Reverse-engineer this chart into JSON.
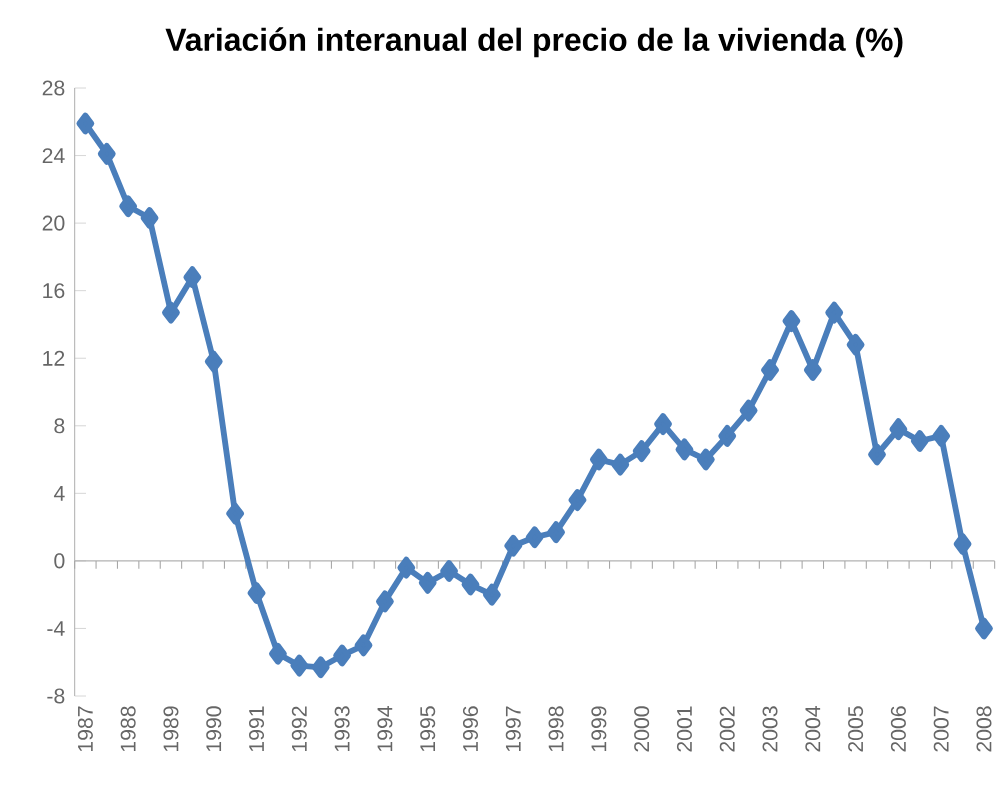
{
  "chart_data": {
    "type": "line",
    "title": "Variación interanual del precio de la vivienda (%)",
    "categories": [
      "1987",
      null,
      "1988",
      null,
      "1989",
      null,
      "1990",
      null,
      "1991",
      null,
      "1992",
      null,
      "1993",
      null,
      "1994",
      null,
      "1995",
      null,
      "1996",
      null,
      "1997",
      null,
      "1998",
      null,
      "1999",
      null,
      "2000",
      null,
      "2001",
      null,
      "2002",
      null,
      "2003",
      null,
      "2004",
      null,
      "2005",
      null,
      "2006",
      null,
      "2007",
      null,
      "2008"
    ],
    "values": [
      25.9,
      24.1,
      21.0,
      20.3,
      14.7,
      16.8,
      11.8,
      2.8,
      -1.9,
      -5.5,
      -6.2,
      -6.3,
      -5.6,
      -5.0,
      -2.4,
      -0.4,
      -1.3,
      -0.6,
      -1.4,
      -2.0,
      0.9,
      1.4,
      1.7,
      3.6,
      6.0,
      5.7,
      6.5,
      8.1,
      6.6,
      6.0,
      7.4,
      8.9,
      11.3,
      14.2,
      11.3,
      14.7,
      12.8,
      6.3,
      7.8,
      7.1,
      7.4,
      1.0,
      -4.0
    ],
    "color": "#4a7ebb",
    "marker": "diamond",
    "line_style": "solid",
    "ylim": [
      -8,
      28
    ],
    "yticks": [
      -8,
      -4,
      0,
      4,
      8,
      12,
      16,
      20,
      24,
      28
    ]
  }
}
